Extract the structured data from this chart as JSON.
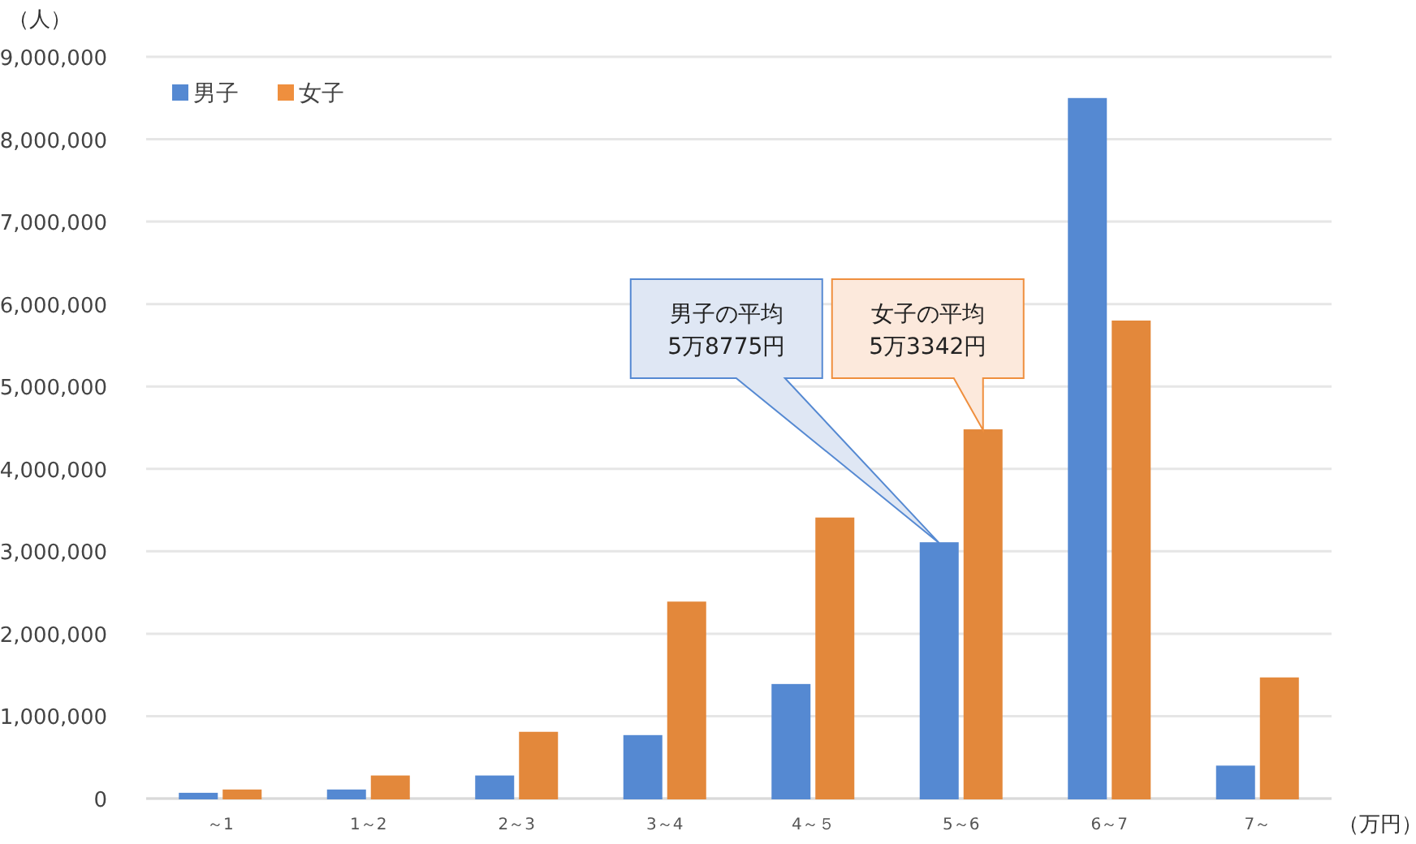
{
  "chart_data": {
    "type": "bar",
    "ylabel": "（人）",
    "xlabel": "（万円）",
    "categories": [
      "～1",
      "1～2",
      "2～3",
      "3～4",
      "4～５",
      "5～6",
      "6～7",
      "7～"
    ],
    "series": [
      {
        "name": "男子",
        "color": "#5589d2",
        "values": [
          60000,
          100000,
          270000,
          760000,
          1380000,
          3100000,
          8490000,
          390000
        ]
      },
      {
        "name": "女子",
        "color": "#ef8f3e",
        "values": [
          100000,
          270000,
          800000,
          2380000,
          3400000,
          4470000,
          5790000,
          1460000
        ]
      }
    ],
    "ylim": [
      0,
      9000000
    ],
    "yticks": [
      {
        "value": 0,
        "label": "0"
      },
      {
        "value": 1000000,
        "label": "1,000,000"
      },
      {
        "value": 2000000,
        "label": "2,000,000"
      },
      {
        "value": 3000000,
        "label": "3,000,000"
      },
      {
        "value": 4000000,
        "label": "4,000,000"
      },
      {
        "value": 5000000,
        "label": "5,000,000"
      },
      {
        "value": 6000000,
        "label": "6,000,000"
      },
      {
        "value": 7000000,
        "label": "7,000,000"
      },
      {
        "value": 8000000,
        "label": "8,000,000"
      },
      {
        "value": 9000000,
        "label": "9,000,000"
      }
    ],
    "grid": "y",
    "legend": "top left",
    "annotations": [
      "男子の平均\n5万8775円",
      "女子の平均\n5万3342円"
    ]
  }
}
